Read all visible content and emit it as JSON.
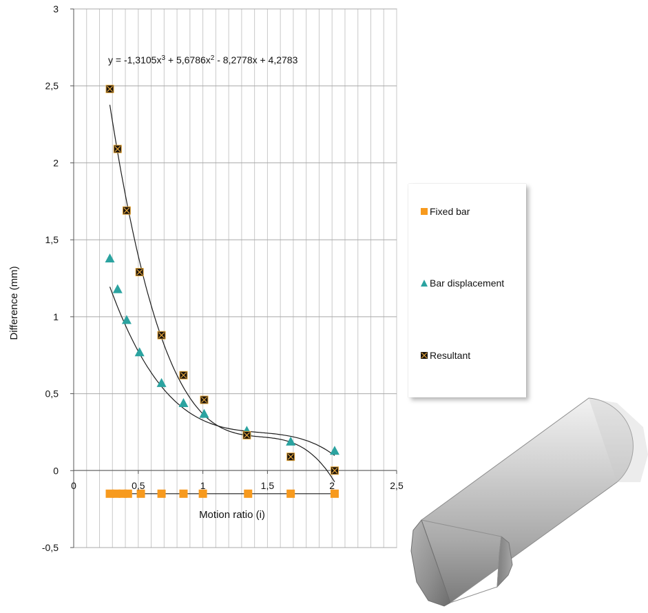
{
  "chart_data": {
    "type": "scatter",
    "xlabel": "Motion ratio (i)",
    "ylabel": "Difference (mm)",
    "xlim": [
      0,
      2.5
    ],
    "ylim": [
      -0.5,
      3
    ],
    "x_ticks": [
      "0",
      "0,5",
      "1",
      "1,5",
      "2",
      "2,5"
    ],
    "y_ticks": [
      "-0,5",
      "0",
      "0,5",
      "1",
      "1,5",
      "2",
      "2,5",
      "3"
    ],
    "grid": true,
    "legend_position": "right",
    "equation": {
      "text_parts": [
        {
          "t": "y = -1,3105x"
        },
        {
          "t": "3",
          "sup": true
        },
        {
          "t": " + 5,6786x"
        },
        {
          "t": "2",
          "sup": true
        },
        {
          "t": " - 8,2778x + 4,2783"
        }
      ]
    },
    "series": [
      {
        "name": "Fixed bar",
        "marker": "square",
        "color": "#F79A1E",
        "x": [
          0.28,
          0.33,
          0.38,
          0.42,
          0.52,
          0.68,
          0.85,
          1.0,
          1.35,
          1.68,
          2.02
        ],
        "y": [
          -0.15,
          -0.15,
          -0.15,
          -0.15,
          -0.15,
          -0.15,
          -0.15,
          -0.15,
          -0.15,
          -0.15,
          -0.15
        ]
      },
      {
        "name": "Bar displacement",
        "marker": "triangle",
        "color": "#2BA3A0",
        "x": [
          0.28,
          0.34,
          0.41,
          0.51,
          0.68,
          0.85,
          1.01,
          1.34,
          1.68,
          2.02
        ],
        "y": [
          1.38,
          1.18,
          0.98,
          0.77,
          0.57,
          0.44,
          0.37,
          0.26,
          0.19,
          0.13
        ]
      },
      {
        "name": "Resultant",
        "marker": "xsquare",
        "color": "#1C1510",
        "x": [
          0.28,
          0.34,
          0.41,
          0.51,
          0.68,
          0.85,
          1.01,
          1.34,
          1.68,
          2.02
        ],
        "y": [
          2.48,
          2.09,
          1.69,
          1.29,
          0.88,
          0.62,
          0.46,
          0.23,
          0.09,
          0.0
        ]
      }
    ],
    "trendlines": [
      {
        "series": "Fixed bar",
        "type": "linear",
        "coeffs": [
          -0.15
        ],
        "x_range": [
          0.28,
          2.02
        ]
      },
      {
        "series": "Bar displacement",
        "type": "polynomial",
        "coeffs": [
          -0.552,
          2.3843,
          -3.5064,
          2.0016
        ],
        "x_range": [
          0.28,
          2.02
        ]
      },
      {
        "series": "Resultant",
        "type": "polynomial",
        "coeffs": [
          -1.3105,
          5.6786,
          -8.2778,
          4.2783
        ],
        "x_range": [
          0.28,
          2.02
        ]
      }
    ],
    "colors": {
      "fixed": "#F79A1E",
      "bar": "#2BA3A0",
      "resultant": "#1C1510",
      "resultant_fill": "#E8A838"
    }
  },
  "illustration": {
    "name": "cylindrical-bar-3d",
    "colors": [
      "#9a9a9a",
      "#d8d8d8",
      "#6a6a6a"
    ]
  }
}
